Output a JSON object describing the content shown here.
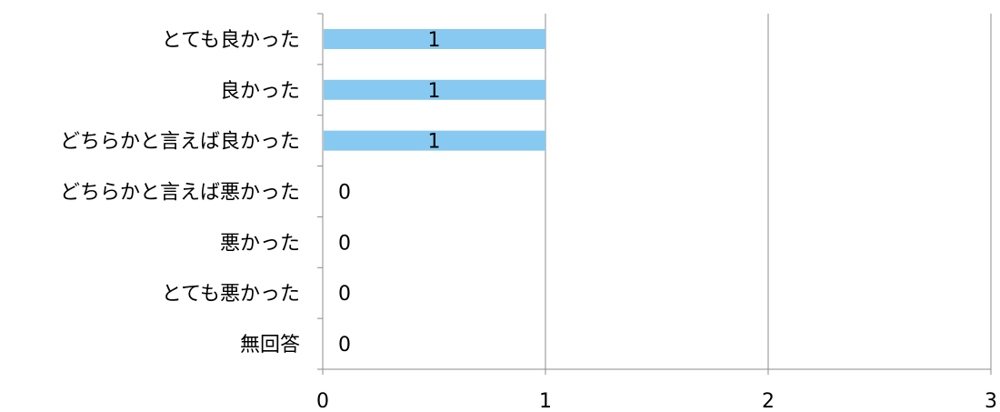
{
  "chart_data": {
    "type": "bar",
    "orientation": "horizontal",
    "categories": [
      "とても良かった",
      "良かった",
      "どちらかと言えば良かった",
      "どちらかと言えば悪かった",
      "悪かった",
      "とても悪かった",
      "無回答"
    ],
    "values": [
      1,
      1,
      1,
      0,
      0,
      0,
      0
    ],
    "xlim": [
      0,
      3
    ],
    "x_ticks": [
      0,
      1,
      2,
      3
    ],
    "grid": "vertical",
    "data_labels": true,
    "bar_color": "#87c9f0",
    "title": "",
    "xlabel": "",
    "ylabel": ""
  }
}
